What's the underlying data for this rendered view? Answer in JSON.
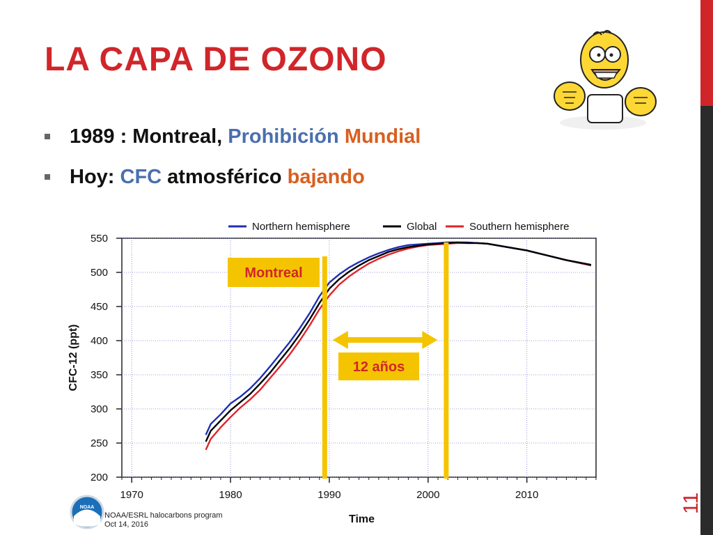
{
  "slide": {
    "title": "LA CAPA DE OZONO",
    "number": "11",
    "accent_color": "#d0262a",
    "dark_color": "#2b2b2b"
  },
  "bullets": [
    {
      "parts": [
        {
          "text": "1989 : Montreal, ",
          "color": "#111111"
        },
        {
          "text": "Prohibición",
          "color": "#4a6fae"
        },
        {
          "text": " ",
          "color": "#111111"
        },
        {
          "text": "Mundial",
          "color": "#d85f20"
        }
      ]
    },
    {
      "parts": [
        {
          "text": "Hoy: ",
          "color": "#111111"
        },
        {
          "text": "CFC",
          "color": "#4a6fae"
        },
        {
          "text": " atmosférico ",
          "color": "#111111"
        },
        {
          "text": "bajando",
          "color": "#d85f20"
        }
      ]
    }
  ],
  "mascot": {
    "icon": "cartoon-character-icon"
  },
  "chart_data": {
    "type": "line",
    "title": "",
    "xlabel": "Time",
    "ylabel": "CFC-12 (ppt)",
    "xlim": [
      1969,
      2017
    ],
    "ylim": [
      200,
      550
    ],
    "xticks": [
      1970,
      1980,
      1990,
      2000,
      2010
    ],
    "yticks": [
      200,
      250,
      300,
      350,
      400,
      450,
      500,
      550
    ],
    "grid": true,
    "legend_position": "top",
    "series": [
      {
        "name": "Northern hemisphere",
        "color": "#1f2fb3",
        "x": [
          1977.5,
          1978,
          1979,
          1980,
          1981,
          1982,
          1983,
          1984,
          1985,
          1986,
          1987,
          1988,
          1989,
          1990,
          1991,
          1992,
          1993,
          1994,
          1995,
          1996,
          1997,
          1998,
          1999,
          2000,
          2001,
          2002,
          2003,
          2004,
          2005,
          2006,
          2008,
          2010,
          2012,
          2014,
          2016.5
        ],
        "y": [
          262,
          278,
          292,
          308,
          318,
          330,
          345,
          362,
          380,
          398,
          418,
          440,
          465,
          485,
          497,
          507,
          515,
          522,
          528,
          533,
          537,
          540,
          541,
          542,
          543,
          544,
          544,
          544,
          543,
          542,
          537,
          532,
          525,
          518,
          511
        ]
      },
      {
        "name": "Global",
        "color": "#000000",
        "x": [
          1977.5,
          1978,
          1979,
          1980,
          1981,
          1982,
          1983,
          1984,
          1985,
          1986,
          1987,
          1988,
          1989,
          1990,
          1991,
          1992,
          1993,
          1994,
          1995,
          1996,
          1997,
          1998,
          1999,
          2000,
          2001,
          2002,
          2003,
          2004,
          2005,
          2006,
          2008,
          2010,
          2012,
          2014,
          2016.5
        ],
        "y": [
          252,
          268,
          283,
          298,
          310,
          322,
          337,
          353,
          371,
          389,
          409,
          431,
          455,
          476,
          490,
          501,
          510,
          518,
          524,
          530,
          534,
          537,
          539,
          541,
          542,
          543,
          544,
          543,
          543,
          542,
          537,
          532,
          525,
          518,
          511
        ]
      },
      {
        "name": "Southern hemisphere",
        "color": "#e0232a",
        "x": [
          1977.5,
          1978,
          1979,
          1980,
          1981,
          1982,
          1983,
          1984,
          1985,
          1986,
          1987,
          1988,
          1989,
          1990,
          1991,
          1992,
          1993,
          1994,
          1995,
          1996,
          1997,
          1998,
          1999,
          2000,
          2001,
          2002,
          2003,
          2004,
          2005,
          2006,
          2008,
          2010,
          2012,
          2014,
          2016.5
        ],
        "y": [
          240,
          256,
          273,
          288,
          302,
          314,
          328,
          345,
          362,
          380,
          400,
          422,
          446,
          466,
          482,
          494,
          504,
          513,
          520,
          526,
          531,
          535,
          538,
          540,
          541,
          542,
          543,
          543,
          543,
          542,
          537,
          532,
          525,
          518,
          510
        ]
      }
    ],
    "annotations": {
      "montreal_label": "Montreal",
      "montreal_year": 1989.5,
      "end_year": 2001.8,
      "span_label": "12 años",
      "marker_color": "#f5c400"
    },
    "credit": {
      "logo_text": "NOAA",
      "line1": "NOAA/ESRL halocarbons program",
      "line2": "Oct 14, 2016"
    }
  }
}
